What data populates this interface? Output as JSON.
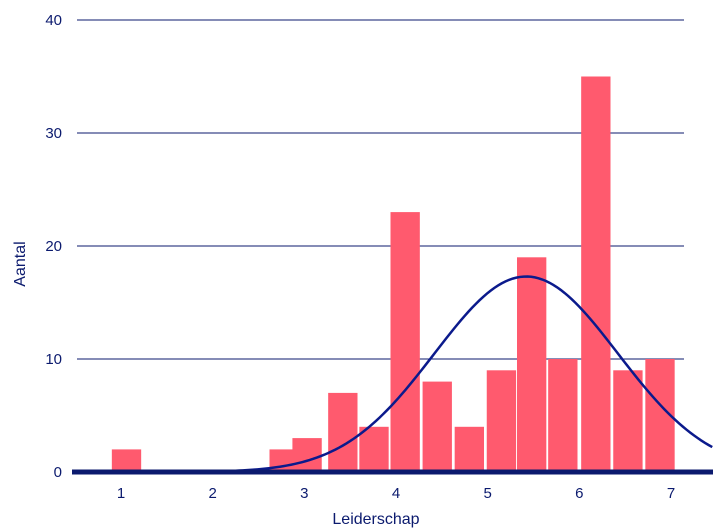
{
  "chart_data": {
    "type": "bar",
    "xlabel": "Leiderschap",
    "ylabel": "Aantal",
    "ylim": [
      0,
      40
    ],
    "y_ticks": [
      0,
      10,
      20,
      30,
      40
    ],
    "x_ticks": [
      1,
      2,
      3,
      4,
      5,
      6,
      7
    ],
    "grid": "horizontal",
    "bars": [
      {
        "x": 1.06,
        "value": 2
      },
      {
        "x": 2.78,
        "value": 2
      },
      {
        "x": 3.03,
        "value": 3
      },
      {
        "x": 3.42,
        "value": 7
      },
      {
        "x": 3.76,
        "value": 4
      },
      {
        "x": 4.1,
        "value": 23
      },
      {
        "x": 4.45,
        "value": 8
      },
      {
        "x": 4.8,
        "value": 4
      },
      {
        "x": 5.15,
        "value": 9
      },
      {
        "x": 5.48,
        "value": 19
      },
      {
        "x": 5.82,
        "value": 10
      },
      {
        "x": 6.18,
        "value": 35
      },
      {
        "x": 6.53,
        "value": 9
      },
      {
        "x": 6.88,
        "value": 10
      }
    ],
    "bar_width": 0.32,
    "curve": {
      "type": "normal",
      "mean": 5.42,
      "peak": 17.3,
      "sd": 1.0,
      "x_range": [
        1.0,
        7.45
      ]
    },
    "colors": {
      "bar": "#ff5a6e",
      "curve": "#0b1a8c",
      "grid": "#0b1a6e",
      "axis": "#0b1a6e",
      "text": "#0b1a6e"
    }
  }
}
